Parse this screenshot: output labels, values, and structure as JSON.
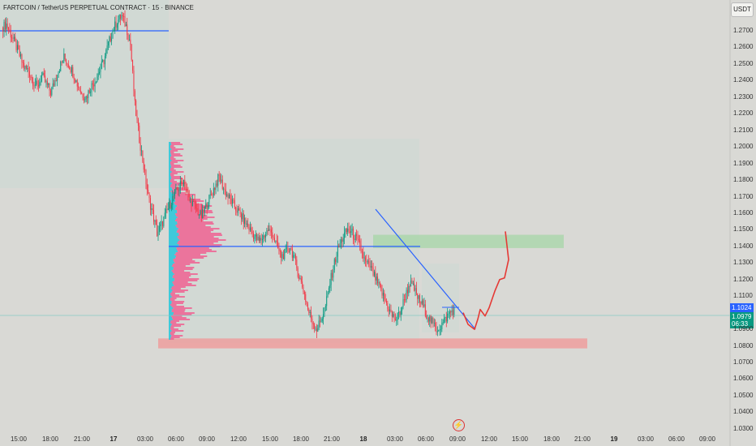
{
  "header": {
    "title": "FARTCOIN / TetherUS PERPETUAL CONTRACT · 15 · BINANCE",
    "currency_label": "USDT"
  },
  "price_tags": {
    "last_price": "1.1024",
    "mark_price": "1.0979",
    "countdown": "06:33"
  },
  "colors": {
    "up_candle": "#089981",
    "down_candle": "#f23645",
    "trendline": "#2962ff",
    "supply_zone": "#a5d6a7",
    "demand_zone": "#ef9a9a",
    "volume_profile_up": "#26c6da",
    "volume_profile_down": "#f06292",
    "projection_path": "#e53935"
  },
  "chart_data": {
    "type": "candlestick",
    "title": "FARTCOIN / TetherUS PERPETUAL CONTRACT · 15 · BINANCE",
    "y_axis": {
      "ticks": [
        "1.2700",
        "1.2600",
        "1.2500",
        "1.2400",
        "1.2300",
        "1.2200",
        "1.2100",
        "1.2000",
        "1.1900",
        "1.1800",
        "1.1700",
        "1.1600",
        "1.1500",
        "1.1400",
        "1.1300",
        "1.1200",
        "1.1100",
        "1.0900",
        "1.0800",
        "1.0700",
        "1.0600",
        "1.0500",
        "1.0400",
        "1.0300"
      ],
      "range": [
        1.024,
        1.288
      ]
    },
    "x_axis": {
      "ticks": [
        {
          "label": "15:00",
          "bold": false
        },
        {
          "label": "18:00",
          "bold": false
        },
        {
          "label": "21:00",
          "bold": false
        },
        {
          "label": "17",
          "bold": true
        },
        {
          "label": "03:00",
          "bold": false
        },
        {
          "label": "06:00",
          "bold": false
        },
        {
          "label": "09:00",
          "bold": false
        },
        {
          "label": "12:00",
          "bold": false
        },
        {
          "label": "15:00",
          "bold": false
        },
        {
          "label": "18:00",
          "bold": false
        },
        {
          "label": "21:00",
          "bold": false
        },
        {
          "label": "18",
          "bold": true
        },
        {
          "label": "03:00",
          "bold": false
        },
        {
          "label": "06:00",
          "bold": false
        },
        {
          "label": "09:00",
          "bold": false
        },
        {
          "label": "12:00",
          "bold": false
        },
        {
          "label": "15:00",
          "bold": false
        },
        {
          "label": "18:00",
          "bold": false
        },
        {
          "label": "21:00",
          "bold": false
        },
        {
          "label": "19",
          "bold": true
        },
        {
          "label": "03:00",
          "bold": false
        },
        {
          "label": "06:00",
          "bold": false
        },
        {
          "label": "09:00",
          "bold": false
        }
      ]
    },
    "price_path": [
      1.272,
      1.274,
      1.268,
      1.262,
      1.255,
      1.248,
      1.246,
      1.24,
      1.236,
      1.243,
      1.238,
      1.233,
      1.24,
      1.248,
      1.254,
      1.25,
      1.245,
      1.238,
      1.232,
      1.23,
      1.236,
      1.24,
      1.246,
      1.252,
      1.262,
      1.27,
      1.276,
      1.279,
      1.273,
      1.262,
      1.225,
      1.205,
      1.188,
      1.17,
      1.16,
      1.148,
      1.153,
      1.16,
      1.166,
      1.172,
      1.176,
      1.18,
      1.17,
      1.166,
      1.162,
      1.158,
      1.164,
      1.17,
      1.176,
      1.182,
      1.175,
      1.17,
      1.166,
      1.162,
      1.158,
      1.154,
      1.15,
      1.146,
      1.143,
      1.146,
      1.15,
      1.148,
      1.14,
      1.134,
      1.136,
      1.14,
      1.132,
      1.122,
      1.114,
      1.102,
      1.095,
      1.09,
      1.096,
      1.104,
      1.118,
      1.13,
      1.14,
      1.146,
      1.15,
      1.148,
      1.144,
      1.138,
      1.13,
      1.128,
      1.122,
      1.116,
      1.11,
      1.104,
      1.098,
      1.096,
      1.102,
      1.11,
      1.118,
      1.114,
      1.108,
      1.104,
      1.098,
      1.094,
      1.09,
      1.092,
      1.096,
      1.1,
      1.102
    ],
    "horizontal_levels": [
      1.27,
      1.14
    ],
    "zones": [
      {
        "name": "supply",
        "price_low": 1.139,
        "price_high": 1.147
      },
      {
        "name": "demand",
        "price_low": 1.0785,
        "price_high": 1.0845
      }
    ],
    "projection": [
      1.1,
      1.093,
      1.09,
      1.096,
      1.102,
      1.098,
      1.103,
      1.113,
      1.12,
      1.121,
      1.132,
      1.149
    ]
  }
}
